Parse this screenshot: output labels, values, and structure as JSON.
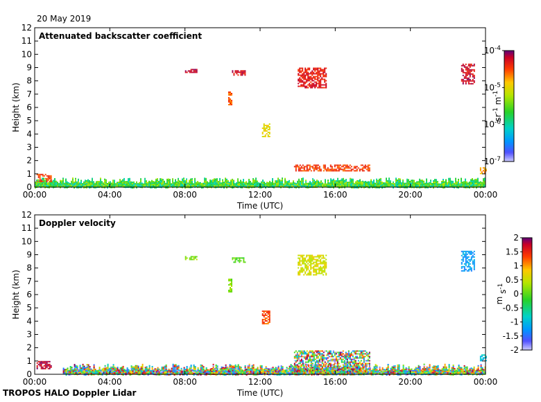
{
  "header": {
    "date": "20 May 2019"
  },
  "footer": {
    "instrument": "TROPOS HALO Doppler Lidar"
  },
  "chart_data": [
    {
      "type": "heatmap",
      "title": "Attenuated backscatter coefficient",
      "xlabel": "Time (UTC)",
      "ylabel": "Height (km)",
      "xlim": [
        0,
        24
      ],
      "ylim": [
        0,
        12
      ],
      "x_ticks": [
        "00:00",
        "04:00",
        "08:00",
        "12:00",
        "16:00",
        "20:00",
        "00:00"
      ],
      "y_ticks": [
        "0",
        "1",
        "2",
        "3",
        "4",
        "5",
        "6",
        "7",
        "8",
        "9",
        "10",
        "11",
        "12"
      ],
      "colorbar": {
        "label": "sr-1 m-1",
        "scale": "log",
        "ticks": [
          "10-7",
          "10-6",
          "10-5",
          "10-4"
        ],
        "range": [
          1e-07,
          0.0001
        ]
      },
      "features": [
        {
          "name": "boundary-layer",
          "x": [
            0.0,
            24.0
          ],
          "y": [
            0.0,
            0.9
          ],
          "value_level": 0.45
        },
        {
          "name": "early-cloud",
          "x": [
            0.1,
            0.9
          ],
          "y": [
            0.4,
            1.0
          ],
          "value_level": 0.85
        },
        {
          "name": "cloud-layer",
          "x": [
            13.8,
            17.8
          ],
          "y": [
            1.2,
            1.7
          ],
          "value_level": 0.85
        },
        {
          "name": "midlevel-cloud",
          "x": [
            12.1,
            12.5
          ],
          "y": [
            3.8,
            4.8
          ],
          "value_level": 0.68
        },
        {
          "name": "upper-cloud-1",
          "x": [
            8.0,
            8.6
          ],
          "y": [
            8.6,
            8.9
          ],
          "value_level": 0.95
        },
        {
          "name": "upper-cloud-2",
          "x": [
            10.5,
            11.2
          ],
          "y": [
            8.4,
            8.8
          ],
          "value_level": 0.92
        },
        {
          "name": "upper-cloud-3",
          "x": [
            14.0,
            15.5
          ],
          "y": [
            7.5,
            9.0
          ],
          "value_level": 0.9
        },
        {
          "name": "upper-cloud-4",
          "x": [
            22.7,
            23.4
          ],
          "y": [
            7.8,
            9.3
          ],
          "value_level": 0.93
        },
        {
          "name": "fall-streak",
          "x": [
            10.3,
            10.5
          ],
          "y": [
            6.2,
            7.2
          ],
          "value_level": 0.82
        },
        {
          "name": "late-cloud",
          "x": [
            23.7,
            24.0
          ],
          "y": [
            1.0,
            1.5
          ],
          "value_level": 0.75
        }
      ]
    },
    {
      "type": "heatmap",
      "title": "Doppler velocity",
      "xlabel": "Time (UTC)",
      "ylabel": "Height (km)",
      "xlim": [
        0,
        24
      ],
      "ylim": [
        0,
        12
      ],
      "x_ticks": [
        "00:00",
        "04:00",
        "08:00",
        "12:00",
        "16:00",
        "20:00",
        "00:00"
      ],
      "y_ticks": [
        "0",
        "1",
        "2",
        "3",
        "4",
        "5",
        "6",
        "7",
        "8",
        "9",
        "10",
        "11",
        "12"
      ],
      "colorbar": {
        "label": "m s-1",
        "scale": "linear",
        "ticks": [
          "2",
          "1.5",
          "1",
          "0.5",
          "0",
          "-0.5",
          "-1",
          "-1.5",
          "-2"
        ],
        "range": [
          -2,
          2
        ]
      },
      "features": [
        {
          "name": "boundary-layer",
          "x": [
            1.5,
            24.0
          ],
          "y": [
            0.0,
            1.0
          ],
          "velocity": "mixed -2..2"
        },
        {
          "name": "early-cloud",
          "x": [
            0.1,
            0.9
          ],
          "y": [
            0.4,
            1.0
          ],
          "velocity": 1.8
        },
        {
          "name": "cloud-layer",
          "x": [
            13.8,
            17.8
          ],
          "y": [
            0.0,
            1.8
          ],
          "velocity": "mixed"
        },
        {
          "name": "midlevel-cloud",
          "x": [
            12.1,
            12.5
          ],
          "y": [
            3.8,
            4.8
          ],
          "velocity": 1.3
        },
        {
          "name": "upper-cloud-1",
          "x": [
            8.0,
            8.6
          ],
          "y": [
            8.6,
            8.9
          ],
          "velocity": 0.2
        },
        {
          "name": "upper-cloud-2",
          "x": [
            10.5,
            11.2
          ],
          "y": [
            8.4,
            8.8
          ],
          "velocity": 0.0
        },
        {
          "name": "upper-cloud-3",
          "x": [
            14.0,
            15.5
          ],
          "y": [
            7.5,
            9.0
          ],
          "velocity": 0.6
        },
        {
          "name": "upper-cloud-4",
          "x": [
            22.7,
            23.4
          ],
          "y": [
            7.8,
            9.3
          ],
          "velocity": -1.2
        },
        {
          "name": "fall-streak",
          "x": [
            10.3,
            10.5
          ],
          "y": [
            6.2,
            7.2
          ],
          "velocity": 0.2
        },
        {
          "name": "late-cloud",
          "x": [
            23.7,
            24.0
          ],
          "y": [
            1.0,
            1.5
          ],
          "velocity": -1.0
        }
      ]
    }
  ]
}
